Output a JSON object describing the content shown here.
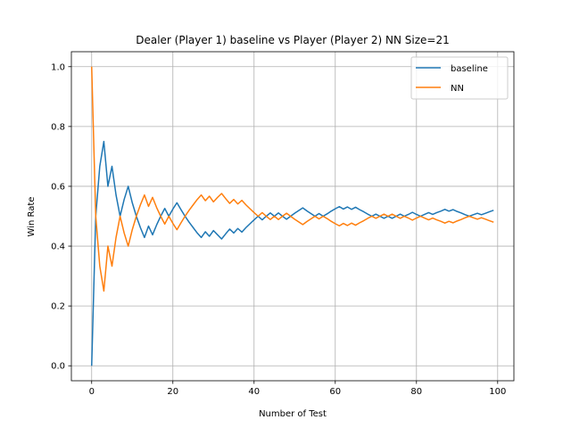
{
  "chart_data": {
    "type": "line",
    "title": "Dealer (Player 1) baseline vs Player (Player 2) NN Size=21",
    "xlabel": "Number of Test",
    "ylabel": "Win Rate",
    "xlim": [
      -5,
      104
    ],
    "ylim": [
      -0.05,
      1.05
    ],
    "xticks": [
      0,
      20,
      40,
      60,
      80,
      100
    ],
    "yticks": [
      0.0,
      0.2,
      0.4,
      0.6,
      0.8,
      1.0
    ],
    "xtick_labels": [
      "0",
      "20",
      "40",
      "60",
      "80",
      "100"
    ],
    "ytick_labels": [
      "0.0",
      "0.2",
      "0.4",
      "0.6",
      "0.8",
      "1.0"
    ],
    "grid": true,
    "legend_position": "top-right",
    "series": [
      {
        "name": "baseline",
        "color": "#1f77b4",
        "x": [
          0,
          1,
          2,
          3,
          4,
          5,
          6,
          7,
          8,
          9,
          10,
          11,
          12,
          13,
          14,
          15,
          16,
          17,
          18,
          19,
          20,
          21,
          22,
          23,
          24,
          25,
          26,
          27,
          28,
          29,
          30,
          31,
          32,
          33,
          34,
          35,
          36,
          37,
          38,
          39,
          40,
          41,
          42,
          43,
          44,
          45,
          46,
          47,
          48,
          49,
          50,
          51,
          52,
          53,
          54,
          55,
          56,
          57,
          58,
          59,
          60,
          61,
          62,
          63,
          64,
          65,
          66,
          67,
          68,
          69,
          70,
          71,
          72,
          73,
          74,
          75,
          76,
          77,
          78,
          79,
          80,
          81,
          82,
          83,
          84,
          85,
          86,
          87,
          88,
          89,
          90,
          91,
          92,
          93,
          94,
          95,
          96,
          97,
          98,
          99
        ],
        "values": [
          0.0,
          0.5,
          0.667,
          0.75,
          0.6,
          0.667,
          0.571,
          0.5,
          0.556,
          0.6,
          0.545,
          0.5,
          0.462,
          0.429,
          0.467,
          0.438,
          0.471,
          0.5,
          0.526,
          0.5,
          0.524,
          0.545,
          0.522,
          0.5,
          0.48,
          0.462,
          0.444,
          0.429,
          0.448,
          0.433,
          0.452,
          0.438,
          0.424,
          0.441,
          0.457,
          0.444,
          0.459,
          0.447,
          0.462,
          0.475,
          0.488,
          0.5,
          0.488,
          0.5,
          0.511,
          0.5,
          0.511,
          0.5,
          0.49,
          0.5,
          0.51,
          0.519,
          0.528,
          0.518,
          0.509,
          0.5,
          0.509,
          0.5,
          0.508,
          0.517,
          0.525,
          0.532,
          0.524,
          0.531,
          0.523,
          0.53,
          0.522,
          0.515,
          0.507,
          0.5,
          0.507,
          0.5,
          0.493,
          0.5,
          0.493,
          0.5,
          0.507,
          0.5,
          0.506,
          0.513,
          0.506,
          0.5,
          0.506,
          0.512,
          0.506,
          0.512,
          0.517,
          0.523,
          0.517,
          0.522,
          0.516,
          0.511,
          0.505,
          0.5,
          0.505,
          0.51,
          0.505,
          0.51,
          0.515,
          0.52
        ]
      },
      {
        "name": "NN",
        "color": "#ff7f0e",
        "x": [
          0,
          1,
          2,
          3,
          4,
          5,
          6,
          7,
          8,
          9,
          10,
          11,
          12,
          13,
          14,
          15,
          16,
          17,
          18,
          19,
          20,
          21,
          22,
          23,
          24,
          25,
          26,
          27,
          28,
          29,
          30,
          31,
          32,
          33,
          34,
          35,
          36,
          37,
          38,
          39,
          40,
          41,
          42,
          43,
          44,
          45,
          46,
          47,
          48,
          49,
          50,
          51,
          52,
          53,
          54,
          55,
          56,
          57,
          58,
          59,
          60,
          61,
          62,
          63,
          64,
          65,
          66,
          67,
          68,
          69,
          70,
          71,
          72,
          73,
          74,
          75,
          76,
          77,
          78,
          79,
          80,
          81,
          82,
          83,
          84,
          85,
          86,
          87,
          88,
          89,
          90,
          91,
          92,
          93,
          94,
          95,
          96,
          97,
          98,
          99
        ],
        "values": [
          1.0,
          0.5,
          0.333,
          0.25,
          0.4,
          0.333,
          0.429,
          0.5,
          0.444,
          0.4,
          0.455,
          0.5,
          0.538,
          0.571,
          0.533,
          0.563,
          0.529,
          0.5,
          0.474,
          0.5,
          0.476,
          0.455,
          0.478,
          0.5,
          0.52,
          0.538,
          0.556,
          0.571,
          0.552,
          0.567,
          0.548,
          0.563,
          0.576,
          0.559,
          0.543,
          0.556,
          0.541,
          0.553,
          0.538,
          0.525,
          0.512,
          0.5,
          0.512,
          0.5,
          0.489,
          0.5,
          0.489,
          0.5,
          0.51,
          0.5,
          0.49,
          0.481,
          0.472,
          0.482,
          0.491,
          0.5,
          0.491,
          0.5,
          0.492,
          0.483,
          0.475,
          0.468,
          0.476,
          0.469,
          0.477,
          0.47,
          0.478,
          0.485,
          0.493,
          0.5,
          0.493,
          0.5,
          0.507,
          0.5,
          0.507,
          0.5,
          0.493,
          0.5,
          0.494,
          0.487,
          0.494,
          0.5,
          0.494,
          0.488,
          0.494,
          0.488,
          0.483,
          0.477,
          0.483,
          0.478,
          0.484,
          0.489,
          0.495,
          0.5,
          0.495,
          0.49,
          0.495,
          0.49,
          0.485,
          0.48
        ]
      }
    ]
  }
}
